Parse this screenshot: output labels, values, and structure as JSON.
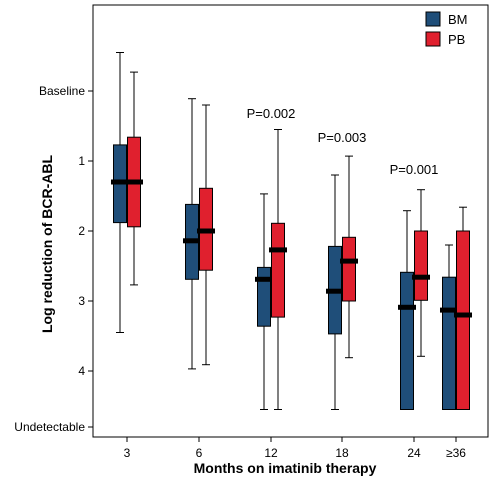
{
  "chart_data": {
    "type": "box",
    "title": "",
    "xlabel": "Months on imatinib therapy",
    "ylabel": "Log reduction of BCR-ABL",
    "categories": [
      "3",
      "6",
      "12",
      "18",
      "24",
      "≥36"
    ],
    "y_ticks": [
      {
        "value": 0,
        "label": "Baseline"
      },
      {
        "value": 1,
        "label": "1"
      },
      {
        "value": 2,
        "label": "2"
      },
      {
        "value": 3,
        "label": "3"
      },
      {
        "value": 4,
        "label": "4"
      },
      {
        "value": 4.8,
        "label": "Undetectable"
      }
    ],
    "ylim": [
      -0.8,
      5.0
    ],
    "y_inverted": true,
    "grid": false,
    "legend_position": "top-right",
    "series": [
      {
        "name": "BM",
        "color": "#1f4e79",
        "boxes": [
          {
            "whisker_low": -0.55,
            "q1": 0.77,
            "median": 1.3,
            "q3": 1.88,
            "whisker_high": 3.45
          },
          {
            "whisker_low": 0.11,
            "q1": 1.62,
            "median": 2.14,
            "q3": 2.69,
            "whisker_high": 3.97
          },
          {
            "whisker_low": 1.47,
            "q1": 2.52,
            "median": 2.69,
            "q3": 3.36,
            "whisker_high": 4.55
          },
          {
            "whisker_low": 1.2,
            "q1": 2.22,
            "median": 2.86,
            "q3": 3.47,
            "whisker_high": 4.55
          },
          {
            "whisker_low": 1.71,
            "q1": 2.59,
            "median": 3.09,
            "q3": 4.55,
            "whisker_high": 4.55
          },
          {
            "whisker_low": 2.2,
            "q1": 2.66,
            "median": 3.13,
            "q3": 4.55,
            "whisker_high": 4.55
          }
        ]
      },
      {
        "name": "PB",
        "color": "#e0202e",
        "boxes": [
          {
            "whisker_low": -0.27,
            "q1": 0.66,
            "median": 1.3,
            "q3": 1.94,
            "whisker_high": 2.77
          },
          {
            "whisker_low": 0.2,
            "q1": 1.39,
            "median": 2.0,
            "q3": 2.56,
            "whisker_high": 3.91
          },
          {
            "whisker_low": 0.55,
            "q1": 1.89,
            "median": 2.27,
            "q3": 3.23,
            "whisker_high": 4.55
          },
          {
            "whisker_low": 0.93,
            "q1": 2.09,
            "median": 2.43,
            "q3": 3.0,
            "whisker_high": 3.81
          },
          {
            "whisker_low": 1.41,
            "q1": 2.0,
            "median": 2.66,
            "q3": 2.99,
            "whisker_high": 3.79
          },
          {
            "whisker_low": 1.66,
            "q1": 2.0,
            "median": 3.2,
            "q3": 4.55,
            "whisker_high": 4.55
          }
        ]
      }
    ],
    "annotations": [
      {
        "text": "P=0.002",
        "category": "12",
        "y": 0.33
      },
      {
        "text": "P=0.003",
        "category": "18",
        "y": 0.67
      },
      {
        "text": "P=0.001",
        "category": "24",
        "y": 1.13
      }
    ]
  }
}
